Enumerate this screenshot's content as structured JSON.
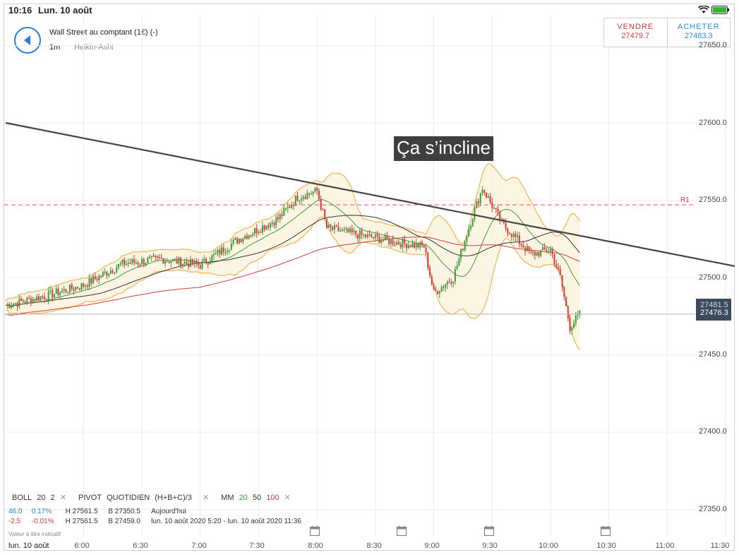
{
  "status_bar": {
    "time": "10:16",
    "date": "Lun. 10 août"
  },
  "header": {
    "instrument": "Wall Street au comptant (1€) (-)",
    "timeframe": "1m",
    "chart_type": "Heikin-Ashi"
  },
  "trade": {
    "sell_label": "VENDRE",
    "sell_price": "27479.7",
    "buy_label": "ACHETER",
    "buy_price": "27483.3"
  },
  "annotation": "Ça s’incline",
  "price_tag": {
    "top_value": "27481.5",
    "current": "27476.3"
  },
  "pivot_label": "R1",
  "y_ticks": [
    "27650.0",
    "27600.0",
    "27550.0",
    "27500.0",
    "27450.0",
    "27400.0",
    "27350.0"
  ],
  "x_ticks": [
    "6:00",
    "6:30",
    "7:00",
    "7:30",
    "8:00",
    "8:30",
    "9:00",
    "9:30",
    "10:00",
    "10:30",
    "11:00",
    "11:30"
  ],
  "x_date": "lun. 10 août",
  "indicators": {
    "boll": {
      "name": "BOLL",
      "p1": "20",
      "p2": "2"
    },
    "pivot": {
      "name": "PIVOT",
      "p1": "QUOTIDIEN",
      "p2": "(H+B+C)/3"
    },
    "mm": {
      "name": "MM",
      "p1": "20",
      "p2": "50",
      "p3": "100"
    }
  },
  "info": {
    "row1": {
      "change": "46.0",
      "pct": "0.17%",
      "high": "H 27561.5",
      "low": "B 27350.5",
      "period": "Aujourd'hui"
    },
    "row2": {
      "change": "-2.5",
      "pct": "-0.01%",
      "high": "H 27561.5",
      "low": "B 27459.0",
      "period": "lun. 10 août 2020 5:20 - lun. 10 août 2020 11:36"
    }
  },
  "disclaimer": "Valeur à titre indicatif",
  "colors": {
    "accent": "#2a7fd4",
    "up": "#3a9a3a",
    "down": "#d43a3a",
    "boll": "#f0a830",
    "mm20": "#3a9a3a",
    "mm50": "#333333",
    "mm100": "#d43a3a",
    "trendline": "#444444",
    "pivot": "#e05050"
  },
  "chart_data": {
    "type": "line",
    "y_axis_label": "",
    "ylim": [
      27340,
      27660
    ],
    "x_time_range": [
      "5:20",
      "11:36"
    ],
    "price_series": [
      {
        "t": "5:20",
        "v": 27482
      },
      {
        "t": "5:40",
        "v": 27488
      },
      {
        "t": "6:00",
        "v": 27495
      },
      {
        "t": "6:20",
        "v": 27509
      },
      {
        "t": "6:40",
        "v": 27512
      },
      {
        "t": "7:00",
        "v": 27508
      },
      {
        "t": "7:20",
        "v": 27525
      },
      {
        "t": "7:40",
        "v": 27538
      },
      {
        "t": "7:50",
        "v": 27552
      },
      {
        "t": "8:00",
        "v": 27556
      },
      {
        "t": "8:05",
        "v": 27532
      },
      {
        "t": "8:20",
        "v": 27528
      },
      {
        "t": "8:40",
        "v": 27523
      },
      {
        "t": "8:55",
        "v": 27520
      },
      {
        "t": "9:00",
        "v": 27490
      },
      {
        "t": "9:10",
        "v": 27500
      },
      {
        "t": "9:20",
        "v": 27540
      },
      {
        "t": "9:25",
        "v": 27558
      },
      {
        "t": "9:35",
        "v": 27535
      },
      {
        "t": "9:50",
        "v": 27515
      },
      {
        "t": "10:00",
        "v": 27518
      },
      {
        "t": "10:05",
        "v": 27500
      },
      {
        "t": "10:10",
        "v": 27468
      },
      {
        "t": "10:15",
        "v": 27476
      }
    ],
    "trendline": [
      {
        "t": "5:20",
        "v": 27600
      },
      {
        "t": "11:36",
        "v": 27507
      }
    ],
    "pivot_r1": 27547,
    "current_price": 27476.3
  }
}
